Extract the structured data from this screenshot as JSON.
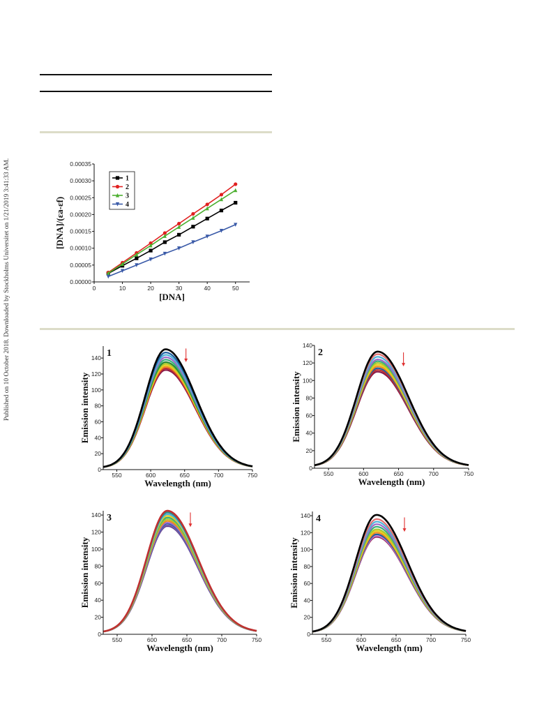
{
  "sidebar": {
    "text": "Published on 10 October 2018. Downloaded by Stockholms Universitet on 1/21/2019 3:41:33 AM."
  },
  "chart_data": [
    {
      "type": "line",
      "xlabel": "[DNA]",
      "ylabel": "[DNA]/(εa-εf)",
      "xlim": [
        0,
        55
      ],
      "ylim": [
        0,
        0.00035
      ],
      "xticks": [
        "0",
        "10",
        "20",
        "30",
        "40",
        "50"
      ],
      "yticks": [
        "0.00000",
        "0.00005",
        "0.00010",
        "0.00015",
        "0.00020",
        "0.00025",
        "0.00030",
        "0.00035"
      ],
      "legend_position": "top-left",
      "x": [
        5,
        10,
        15,
        20,
        25,
        30,
        35,
        40,
        45,
        50
      ],
      "series": [
        {
          "name": "1",
          "color": "#000000",
          "marker": "square",
          "values": [
            2.5e-05,
            4.8e-05,
            7e-05,
            9.3e-05,
            0.000118,
            0.00014,
            0.000164,
            0.000188,
            0.000212,
            0.000235
          ]
        },
        {
          "name": "2",
          "color": "#e02020",
          "marker": "circle",
          "values": [
            2.8e-05,
            5.7e-05,
            8.6e-05,
            0.000115,
            0.000145,
            0.000173,
            0.000202,
            0.00023,
            0.000259,
            0.00029
          ]
        },
        {
          "name": "3",
          "color": "#4caf30",
          "marker": "triangle-up",
          "values": [
            2.6e-05,
            5.3e-05,
            8.1e-05,
            0.000108,
            0.000136,
            0.000163,
            0.00019,
            0.000218,
            0.000245,
            0.000272
          ]
        },
        {
          "name": "4",
          "color": "#3a5aa8",
          "marker": "triangle-down",
          "values": [
            1.6e-05,
            3.3e-05,
            5e-05,
            6.7e-05,
            8.4e-05,
            0.0001,
            0.000118,
            0.000135,
            0.000152,
            0.00017
          ]
        }
      ]
    },
    {
      "type": "line",
      "panel_label": "1",
      "xlabel": "Wavelength (nm)",
      "ylabel": "Emission intensity",
      "xlim": [
        530,
        750
      ],
      "ylim": [
        0,
        155
      ],
      "xticks": [
        "550",
        "600",
        "650",
        "700",
        "750"
      ],
      "yticks": [
        "0",
        "20",
        "40",
        "60",
        "80",
        "100",
        "120",
        "140"
      ],
      "peak_x": 622,
      "peaks": [
        151,
        147,
        144,
        141,
        138,
        135,
        133,
        131,
        129,
        127,
        125
      ],
      "curve_colors": [
        "#000000",
        "#1f5fa0",
        "#4fb3d9",
        "#9d6ac9",
        "#3bb07a",
        "#2a8a3a",
        "#a8c830",
        "#e8d020",
        "#f08a20",
        "#c03030",
        "#8a1a4a"
      ],
      "arrow": {
        "x": 652,
        "y_top": 152,
        "y_bottom": 135,
        "color": "#e03030"
      }
    },
    {
      "type": "line",
      "panel_label": "2",
      "xlabel": "Wavelength (nm)",
      "ylabel": "Emission intensity",
      "xlim": [
        530,
        750
      ],
      "ylim": [
        0,
        140
      ],
      "xticks": [
        "550",
        "600",
        "650",
        "700",
        "750"
      ],
      "yticks": [
        "0",
        "20",
        "40",
        "60",
        "80",
        "100",
        "120",
        "140"
      ],
      "peak_x": 620,
      "peaks": [
        133,
        130,
        127,
        124,
        122,
        120,
        118,
        116,
        114,
        112,
        110
      ],
      "curve_colors": [
        "#000000",
        "#e07070",
        "#4fb3d9",
        "#9d6ac9",
        "#3bb07a",
        "#a8c830",
        "#e8d020",
        "#f08a20",
        "#1f5fa0",
        "#c03030",
        "#8a1a4a"
      ],
      "arrow": {
        "x": 657,
        "y_top": 132,
        "y_bottom": 116,
        "color": "#e03030"
      }
    },
    {
      "type": "line",
      "panel_label": "3",
      "xlabel": "Wavelength (nm)",
      "ylabel": "Emission intensity",
      "xlim": [
        530,
        750
      ],
      "ylim": [
        0,
        145
      ],
      "xticks": [
        "550",
        "600",
        "650",
        "700",
        "750"
      ],
      "yticks": [
        "0",
        "20",
        "40",
        "60",
        "80",
        "100",
        "120",
        "140"
      ],
      "peak_x": 622,
      "peaks": [
        145,
        143,
        141,
        139,
        137,
        135,
        133,
        131,
        130,
        128,
        127
      ],
      "curve_colors": [
        "#c03030",
        "#2a8a8a",
        "#4fb3d9",
        "#e8d020",
        "#3bb07a",
        "#a8c830",
        "#f08a20",
        "#9d6ac9",
        "#1f5fa0",
        "#7a5aa8",
        "#5a3a8a"
      ],
      "arrow": {
        "x": 655,
        "y_top": 143,
        "y_bottom": 126,
        "color": "#e03030"
      }
    },
    {
      "type": "line",
      "panel_label": "4",
      "xlabel": "Wavelength (nm)",
      "ylabel": "Emission intensity",
      "xlim": [
        530,
        750
      ],
      "ylim": [
        0,
        145
      ],
      "xticks": [
        "550",
        "600",
        "650",
        "700",
        "750"
      ],
      "yticks": [
        "0",
        "20",
        "40",
        "60",
        "80",
        "100",
        "120",
        "140"
      ],
      "peak_x": 622,
      "peaks": [
        141,
        136,
        133,
        130,
        127,
        124,
        122,
        120,
        118,
        116,
        115
      ],
      "curve_colors": [
        "#000000",
        "#e07070",
        "#4fb3d9",
        "#9d6ac9",
        "#3bb07a",
        "#a8c830",
        "#e8d020",
        "#f08a20",
        "#1f5fa0",
        "#c070c0",
        "#8a1a4a"
      ],
      "arrow": {
        "x": 662,
        "y_top": 138,
        "y_bottom": 121,
        "color": "#e03030"
      }
    }
  ]
}
